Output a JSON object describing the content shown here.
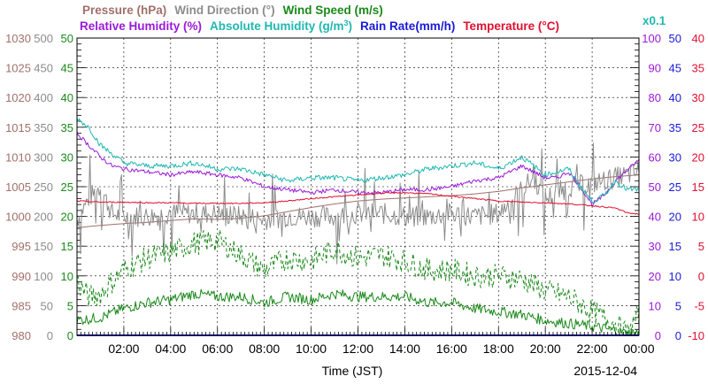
{
  "chart_data": {
    "type": "line",
    "date": "2015-12-04",
    "xlabel": "Time (JST)",
    "x_range": [
      "00:00",
      "24:00"
    ],
    "x_tick_labels": [
      "02:00",
      "04:00",
      "06:00",
      "08:00",
      "10:00",
      "12:00",
      "14:00",
      "16:00",
      "18:00",
      "20:00",
      "22:00",
      "00:00"
    ],
    "grid": true,
    "legend": {
      "row1": [
        {
          "text": "Pressure (hPa)",
          "color": "#a0706a"
        },
        {
          "text": "Wind Direction (°)",
          "color": "#8c8c8c"
        },
        {
          "text": "Wind Speed (m/s)",
          "color": "#1a8a1a"
        }
      ],
      "row2": [
        {
          "text": "Relative Humidity (%)",
          "color": "#9a1ad8"
        },
        {
          "text": "Absolute Humidity (g/m",
          "sup": "3",
          "suffix": ")",
          "color": "#20b8b0"
        },
        {
          "text": "Rain Rate(mm/h)",
          "color": "#1a1ad8"
        },
        {
          "text": "Temperature (°C)",
          "color": "#e01030"
        }
      ]
    },
    "multiplier_label": "x0.1",
    "axes": {
      "pressure": {
        "ylim": [
          980,
          1030
        ],
        "ticks": [
          "980",
          "985",
          "990",
          "995",
          "1000",
          "1005",
          "1010",
          "1015",
          "1020",
          "1025",
          "1030"
        ],
        "color": "#a0706a"
      },
      "wind_direction": {
        "ylim": [
          0,
          500
        ],
        "ticks": [
          "0",
          "50",
          "100",
          "150",
          "200",
          "250",
          "300",
          "350",
          "400",
          "450",
          "500"
        ],
        "color": "#8c8c8c"
      },
      "wind_speed": {
        "ylim": [
          0,
          50
        ],
        "ticks": [
          "0",
          "5",
          "10",
          "15",
          "20",
          "25",
          "30",
          "35",
          "40",
          "45",
          "50"
        ],
        "color": "#1a8a1a"
      },
      "humidity": {
        "ylim": [
          0,
          100
        ],
        "ticks": [
          "0",
          "10",
          "20",
          "30",
          "40",
          "50",
          "60",
          "70",
          "80",
          "90",
          "100"
        ],
        "color": "#9a1ad8"
      },
      "rain_rate": {
        "ylim": [
          0,
          50
        ],
        "ticks": [
          "0",
          "5",
          "10",
          "15",
          "20",
          "25",
          "30",
          "35",
          "40",
          "45",
          "50"
        ],
        "color": "#1a1ad8"
      },
      "temperature": {
        "ylim": [
          -10,
          40
        ],
        "ticks": [
          "-10",
          "-5",
          "0",
          "5",
          "10",
          "15",
          "20",
          "25",
          "30",
          "35",
          "40"
        ],
        "color": "#e01030"
      }
    },
    "series": [
      {
        "key": "pressure",
        "axis": "pressure",
        "color": "#a0706a",
        "style": "solid",
        "hours": [
          0,
          1,
          2,
          3,
          4,
          5,
          6,
          7,
          8,
          9,
          10,
          11,
          12,
          13,
          14,
          15,
          16,
          17,
          18,
          19,
          20,
          21,
          22,
          23,
          24
        ],
        "values": [
          998.1,
          998.5,
          998.8,
          999.0,
          999.3,
          999.6,
          999.5,
          999.7,
          1000.1,
          1000.8,
          1001.5,
          1002.1,
          1002.6,
          1002.9,
          1003.1,
          1003.3,
          1003.5,
          1003.8,
          1004.2,
          1004.8,
          1005.3,
          1005.8,
          1006.3,
          1006.7,
          1007.0
        ]
      },
      {
        "key": "wind_direction",
        "axis": "wind_direction",
        "color": "#8c8c8c",
        "style": "solid",
        "noise": 18,
        "hours": [
          0,
          0.5,
          1,
          1.5,
          2,
          3,
          4,
          5,
          6,
          7,
          8,
          9,
          10,
          11,
          12,
          13,
          14,
          15,
          16,
          17,
          18,
          19,
          19.5,
          20,
          21,
          22,
          23,
          24
        ],
        "values": [
          195,
          230,
          250,
          205,
          200,
          200,
          205,
          205,
          205,
          200,
          195,
          200,
          200,
          200,
          205,
          205,
          200,
          200,
          205,
          200,
          205,
          245,
          265,
          230,
          250,
          255,
          265,
          275
        ]
      },
      {
        "key": "wind_speed_avg",
        "axis": "wind_speed",
        "color": "#1a8a1a",
        "style": "solid",
        "noise": 0.9,
        "hours": [
          0,
          1,
          2,
          3,
          4,
          5,
          6,
          7,
          8,
          9,
          10,
          11,
          12,
          13,
          14,
          15,
          16,
          17,
          18,
          19,
          20,
          21,
          22,
          23,
          23.5,
          24
        ],
        "values": [
          2.5,
          3.0,
          4.5,
          5.5,
          6.0,
          7.0,
          6.5,
          6.5,
          5.5,
          6.5,
          6.0,
          7.0,
          6.5,
          6.5,
          6.5,
          5.5,
          5.5,
          4.5,
          4.0,
          3.5,
          2.5,
          2.0,
          1.5,
          0.8,
          0.3,
          0.5
        ]
      },
      {
        "key": "wind_speed_gust",
        "axis": "wind_speed",
        "color": "#1a8a1a",
        "style": "dashed",
        "noise": 2.0,
        "hours": [
          0,
          0.5,
          1,
          2,
          3,
          4,
          5,
          6,
          7,
          8,
          9,
          10,
          11,
          12,
          13,
          14,
          15,
          16,
          17,
          18,
          19,
          20,
          21,
          22,
          23,
          23.5,
          24
        ],
        "values": [
          9.0,
          6.5,
          7.0,
          11.0,
          13.0,
          14.0,
          15.5,
          16.0,
          13.5,
          11.0,
          13.0,
          12.5,
          14.5,
          13.0,
          13.5,
          12.5,
          11.0,
          11.0,
          10.0,
          10.0,
          9.5,
          7.5,
          6.5,
          4.0,
          2.0,
          0.3,
          3.5
        ]
      },
      {
        "key": "relative_humidity",
        "axis": "humidity",
        "color": "#9a1ad8",
        "style": "solid",
        "noise": 0.7,
        "hours": [
          0,
          0.5,
          1,
          1.5,
          2,
          3,
          4,
          5,
          6,
          7,
          8,
          9,
          10,
          11,
          12,
          13,
          14,
          15,
          16,
          17,
          18,
          19,
          19.5,
          20,
          20.5,
          21,
          21.5,
          22,
          22.5,
          23,
          24
        ],
        "values": [
          68,
          64,
          60,
          57,
          56,
          55,
          54,
          55,
          54,
          53,
          50,
          49,
          48,
          49,
          48,
          48,
          49,
          49,
          50,
          52,
          53,
          57,
          55,
          53,
          53,
          55,
          50,
          44,
          47,
          52,
          59
        ]
      },
      {
        "key": "absolute_humidity",
        "axis": "humidity",
        "color": "#20b8b0",
        "style": "solid",
        "noise": 0.9,
        "hours": [
          0,
          0.5,
          1,
          1.5,
          2,
          3,
          4,
          5,
          6,
          7,
          8,
          9,
          10,
          11,
          12,
          13,
          14,
          15,
          16,
          17,
          18,
          19,
          19.5,
          20,
          20.5,
          21,
          21.5,
          22,
          22.5,
          23,
          23.5,
          24
        ],
        "values": [
          73,
          70,
          64,
          61,
          58,
          57,
          57,
          58,
          56,
          56,
          54,
          52,
          53,
          53,
          52,
          53,
          54,
          56,
          57,
          58,
          56,
          60,
          57,
          54,
          55,
          56,
          50,
          45,
          47,
          52,
          49,
          49
        ]
      },
      {
        "key": "temperature",
        "axis": "temperature",
        "color": "#e01030",
        "style": "solid",
        "noise": 0.1,
        "hours": [
          0,
          1,
          2,
          3,
          4,
          5,
          6,
          7,
          8,
          9,
          10,
          11,
          12,
          13,
          14,
          15,
          16,
          17,
          18,
          19,
          20,
          21,
          22,
          23,
          23.5,
          24
        ],
        "values": [
          12.6,
          12.4,
          12.4,
          12.3,
          12.3,
          12.2,
          12.2,
          12.2,
          12.3,
          12.6,
          13.0,
          13.3,
          13.6,
          13.9,
          14.0,
          13.8,
          13.4,
          13.0,
          12.6,
          12.4,
          12.3,
          12.1,
          11.8,
          11.4,
          10.6,
          10.4
        ]
      },
      {
        "key": "rain_rate",
        "axis": "rain_rate",
        "color": "#1a1ad8",
        "style": "solid",
        "hours": [
          0,
          24
        ],
        "values": [
          0,
          0
        ]
      }
    ]
  }
}
